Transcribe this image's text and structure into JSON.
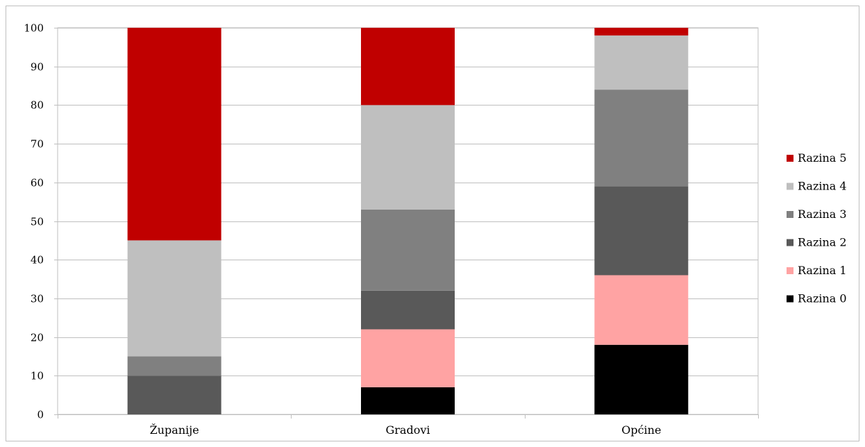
{
  "chart_data": {
    "type": "bar",
    "stacked": true,
    "categories": [
      "Županije",
      "Gradovi",
      "Općine"
    ],
    "ylim": [
      0,
      100
    ],
    "yticks": [
      0,
      10,
      20,
      30,
      40,
      50,
      60,
      70,
      80,
      90,
      100
    ],
    "grid": true,
    "legend_position": "right",
    "series": [
      {
        "name": "Razina 0",
        "color": "#000000",
        "values": [
          0,
          7,
          18
        ]
      },
      {
        "name": "Razina 1",
        "color": "#ffa3a3",
        "values": [
          0,
          15,
          18
        ]
      },
      {
        "name": "Razina 2",
        "color": "#595959",
        "values": [
          10,
          10,
          23
        ]
      },
      {
        "name": "Razina 3",
        "color": "#808080",
        "values": [
          5,
          21,
          25
        ]
      },
      {
        "name": "Razina 4",
        "color": "#bfbfbf",
        "values": [
          30,
          27,
          14
        ]
      },
      {
        "name": "Razina 5",
        "color": "#c00000",
        "values": [
          55,
          20,
          2
        ]
      }
    ]
  }
}
